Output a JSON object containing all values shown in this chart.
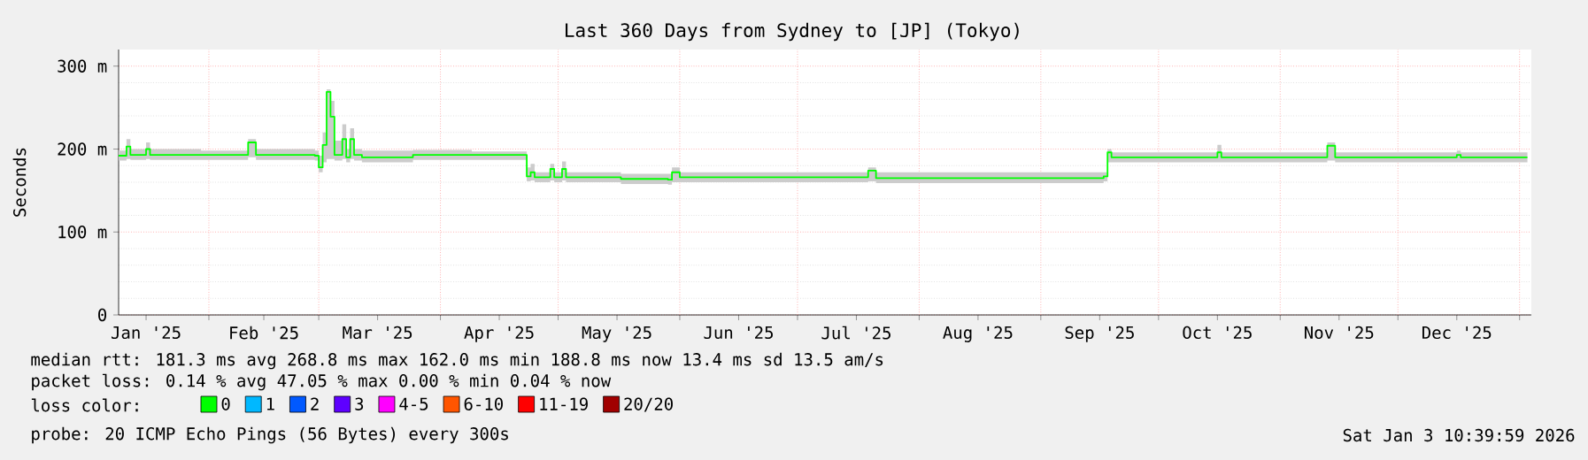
{
  "chart_data": {
    "type": "step",
    "title": "Last 360 Days from Sydney to [JP] (Tokyo)",
    "ylabel": "Seconds",
    "legend_title": "loss color:",
    "legend": "bottom",
    "grid": true,
    "xlim": [
      "2025-01-09",
      "2026-01-04"
    ],
    "xticks": [
      {
        "value": "2025-01-16",
        "label": "Jan '25"
      },
      {
        "value": "2025-02-15",
        "label": "Feb '25"
      },
      {
        "value": "2025-03-16",
        "label": "Mar '25"
      },
      {
        "value": "2025-04-16",
        "label": "Apr '25"
      },
      {
        "value": "2025-05-16",
        "label": "May '25"
      },
      {
        "value": "2025-06-16",
        "label": "Jun '25"
      },
      {
        "value": "2025-07-16",
        "label": "Jul '25"
      },
      {
        "value": "2025-08-16",
        "label": "Aug '25"
      },
      {
        "value": "2025-09-16",
        "label": "Sep '25"
      },
      {
        "value": "2025-10-16",
        "label": "Oct '25"
      },
      {
        "value": "2025-11-16",
        "label": "Nov '25"
      },
      {
        "value": "2025-12-16",
        "label": "Dec '25"
      },
      {
        "value": "2025-02-01",
        "label": null
      },
      {
        "value": "2025-03-01",
        "label": null
      },
      {
        "value": "2025-04-01",
        "label": null
      },
      {
        "value": "2025-05-01",
        "label": null
      },
      {
        "value": "2025-06-01",
        "label": null
      },
      {
        "value": "2025-07-01",
        "label": null
      },
      {
        "value": "2025-08-01",
        "label": null
      },
      {
        "value": "2025-09-01",
        "label": null
      },
      {
        "value": "2025-10-01",
        "label": null
      },
      {
        "value": "2025-11-01",
        "label": null
      },
      {
        "value": "2025-12-01",
        "label": null
      },
      {
        "value": "2026-01-01",
        "label": null
      }
    ],
    "ylim": [
      0,
      320
    ],
    "yticks": [
      0,
      {
        "value": 100,
        "label": "100 m"
      },
      {
        "value": 200,
        "label": "200 m"
      },
      {
        "value": 300,
        "label": "300 m"
      }
    ],
    "x": [
      "2025-01-09",
      "2025-01-11",
      "2025-01-12",
      "2025-01-16",
      "2025-01-17",
      "2025-01-30",
      "2025-02-11",
      "2025-02-13",
      "2025-02-28",
      "2025-03-01",
      "2025-03-02",
      "2025-03-03",
      "2025-03-04",
      "2025-03-05",
      "2025-03-07",
      "2025-03-08",
      "2025-03-09",
      "2025-03-10",
      "2025-03-12",
      "2025-03-25",
      "2025-04-09",
      "2025-04-22",
      "2025-04-23",
      "2025-04-24",
      "2025-04-25",
      "2025-04-29",
      "2025-04-30",
      "2025-05-02",
      "2025-05-03",
      "2025-05-17",
      "2025-05-29",
      "2025-05-30",
      "2025-06-01",
      "2025-06-30",
      "2025-07-19",
      "2025-07-21",
      "2025-09-17",
      "2025-09-18",
      "2025-09-19",
      "2025-10-16",
      "2025-10-17",
      "2025-11-12",
      "2025-11-13",
      "2025-11-15",
      "2025-12-16",
      "2025-12-17",
      "2026-01-03"
    ],
    "series": [
      {
        "name": "0",
        "color": "#00ff00",
        "values": [
          192,
          203,
          193,
          200,
          193,
          193,
          208,
          193,
          192,
          178,
          205,
          269,
          239,
          193,
          212,
          190,
          212,
          193,
          190,
          193,
          193,
          193,
          167,
          172,
          166,
          176,
          166,
          176,
          166,
          164,
          163,
          172,
          166,
          166,
          174,
          165,
          167,
          196,
          190,
          196,
          190,
          190,
          204,
          190,
          193,
          190,
          190
        ],
        "lower": [
          186,
          188,
          187,
          188,
          187,
          187,
          190,
          187,
          186,
          172,
          184,
          188,
          188,
          186,
          188,
          184,
          188,
          186,
          184,
          187,
          187,
          187,
          161,
          162,
          160,
          162,
          160,
          162,
          160,
          158,
          157,
          160,
          160,
          160,
          161,
          159,
          161,
          184,
          184,
          184,
          184,
          184,
          186,
          184,
          184,
          184,
          184
        ],
        "upper": [
          198,
          212,
          200,
          208,
          200,
          198,
          212,
          200,
          198,
          192,
          220,
          272,
          258,
          210,
          230,
          200,
          225,
          200,
          198,
          199,
          197,
          197,
          178,
          182,
          172,
          182,
          172,
          185,
          172,
          170,
          170,
          178,
          172,
          172,
          178,
          172,
          172,
          200,
          196,
          205,
          196,
          196,
          208,
          196,
          198,
          196,
          196
        ]
      },
      {
        "name": "1",
        "color": "#00b8ff",
        "values": [
          null,
          null,
          null,
          null,
          null,
          null,
          null,
          null,
          null,
          null,
          null,
          null,
          null,
          null,
          null,
          null,
          null,
          null,
          null,
          null,
          null,
          null,
          null,
          null,
          null,
          null,
          null,
          null,
          null,
          null,
          null,
          null,
          null,
          null,
          null,
          null,
          null,
          null,
          null,
          null,
          null,
          null,
          null,
          null,
          null,
          null,
          null
        ]
      },
      {
        "name": "2",
        "color": "#0059ff",
        "values": [
          null,
          null,
          null,
          null,
          null,
          null,
          null,
          null,
          null,
          null,
          null,
          null,
          null,
          null,
          null,
          null,
          null,
          null,
          null,
          null,
          null,
          null,
          null,
          null,
          null,
          null,
          null,
          null,
          null,
          null,
          null,
          null,
          null,
          null,
          null,
          null,
          null,
          null,
          null,
          null,
          null,
          null,
          null,
          null,
          null,
          null,
          null
        ]
      },
      {
        "name": "3",
        "color": "#5e00ff",
        "values": [
          null,
          null,
          null,
          null,
          null,
          null,
          null,
          null,
          null,
          null,
          null,
          null,
          null,
          null,
          null,
          null,
          null,
          null,
          null,
          null,
          null,
          null,
          null,
          null,
          null,
          null,
          null,
          null,
          null,
          null,
          null,
          null,
          null,
          null,
          null,
          null,
          null,
          null,
          null,
          null,
          null,
          null,
          null,
          null,
          null,
          null,
          null
        ]
      },
      {
        "name": "4-5",
        "color": "#ff00ff",
        "values": [
          null,
          null,
          null,
          null,
          null,
          null,
          null,
          null,
          null,
          null,
          null,
          null,
          null,
          null,
          null,
          null,
          null,
          null,
          null,
          null,
          null,
          null,
          null,
          null,
          null,
          null,
          null,
          null,
          null,
          null,
          null,
          null,
          null,
          null,
          null,
          null,
          null,
          null,
          null,
          null,
          null,
          null,
          null,
          null,
          null,
          null,
          null
        ]
      },
      {
        "name": "6-10",
        "color": "#ff5500",
        "values": [
          null,
          null,
          null,
          null,
          null,
          null,
          null,
          null,
          null,
          null,
          null,
          null,
          null,
          null,
          null,
          null,
          null,
          null,
          null,
          null,
          null,
          null,
          null,
          null,
          null,
          null,
          null,
          null,
          null,
          null,
          null,
          null,
          null,
          null,
          null,
          null,
          null,
          null,
          null,
          null,
          null,
          null,
          null,
          null,
          null,
          null,
          null
        ]
      },
      {
        "name": "11-19",
        "color": "#ff0000",
        "values": [
          null,
          null,
          null,
          null,
          null,
          null,
          null,
          null,
          null,
          null,
          null,
          null,
          null,
          null,
          null,
          null,
          null,
          null,
          null,
          null,
          null,
          null,
          null,
          null,
          null,
          null,
          null,
          null,
          null,
          null,
          null,
          null,
          null,
          null,
          null,
          null,
          null,
          null,
          null,
          null,
          null,
          null,
          null,
          null,
          null,
          null,
          null
        ]
      },
      {
        "name": "20/20",
        "color": "#a10000",
        "values": [
          null,
          null,
          null,
          null,
          null,
          null,
          null,
          null,
          null,
          null,
          null,
          null,
          null,
          null,
          null,
          null,
          null,
          null,
          null,
          null,
          null,
          null,
          null,
          null,
          null,
          null,
          null,
          null,
          null,
          null,
          null,
          null,
          null,
          null,
          null,
          null,
          null,
          null,
          null,
          null,
          null,
          null,
          null,
          null,
          null,
          null,
          null
        ]
      }
    ],
    "annotations": [
      "median rtt:  181.3 ms avg  268.8 ms max  162.0 ms min  188.8 ms now  13.4 ms sd  13.5   am/s",
      "packet loss: 0.14 % avg  47.05 % max  0.00 % min  0.04 % now",
      "probe:       20 ICMP Echo Pings (56 Bytes) every 300s",
      "Sat Jan  3 10:39:59 2026"
    ]
  }
}
